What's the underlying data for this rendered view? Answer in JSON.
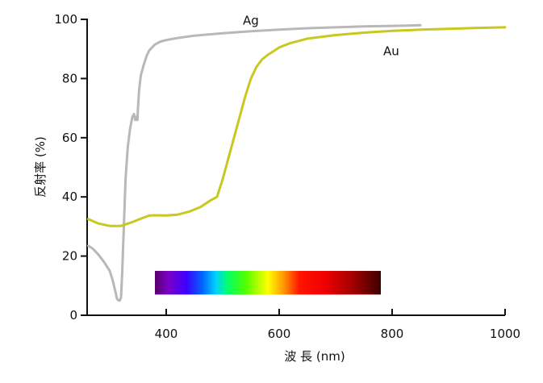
{
  "chart_data": {
    "type": "line",
    "xlabel": "波 長 (nm)",
    "ylabel": "反射率 (%)",
    "xlim": [
      260,
      1000
    ],
    "ylim": [
      0,
      100
    ],
    "x_ticks": [
      400,
      600,
      800,
      1000
    ],
    "y_ticks": [
      0,
      20,
      40,
      60,
      80,
      100
    ],
    "grid": false,
    "spectrum_band": {
      "x_range": [
        380,
        780
      ],
      "y_range": [
        7,
        15
      ]
    },
    "series": [
      {
        "name": "Ag",
        "color": "#b8b8b8",
        "x": [
          262,
          270,
          280,
          290,
          300,
          305,
          310,
          313,
          316,
          318,
          320,
          322,
          325,
          328,
          332,
          336,
          340,
          343,
          345,
          347,
          349,
          350,
          352,
          355,
          360,
          365,
          370,
          380,
          390,
          400,
          420,
          450,
          500,
          550,
          600,
          650,
          700,
          750,
          800,
          850
        ],
        "y": [
          23.5,
          22.5,
          20.5,
          18,
          15,
          12,
          8,
          5.5,
          5,
          5,
          6,
          14,
          30,
          46,
          57,
          63,
          67,
          68,
          66,
          67,
          66,
          70,
          76,
          81,
          84.5,
          87.5,
          89.5,
          91.5,
          92.5,
          93,
          93.7,
          94.5,
          95.3,
          96,
          96.5,
          97,
          97.3,
          97.6,
          97.8,
          98
        ]
      },
      {
        "name": "Au",
        "color": "#c8c81e",
        "x": [
          262,
          280,
          300,
          320,
          340,
          360,
          370,
          380,
          400,
          420,
          440,
          460,
          480,
          490,
          500,
          510,
          520,
          530,
          540,
          550,
          560,
          570,
          580,
          600,
          620,
          650,
          700,
          750,
          800,
          850,
          900,
          950,
          1000
        ],
        "y": [
          32.5,
          31,
          30.2,
          30.2,
          31.5,
          33,
          33.7,
          33.8,
          33.7,
          34,
          35,
          36.5,
          39,
          40,
          46,
          53,
          60,
          67,
          74,
          80,
          84,
          86.5,
          88,
          90.5,
          92,
          93.5,
          94.7,
          95.5,
          96.1,
          96.5,
          96.8,
          97.1,
          97.3
        ]
      }
    ],
    "annotations": [
      {
        "text": "Ag",
        "x": 590,
        "y": 99
      },
      {
        "text": "Au",
        "x": 870,
        "y": 90
      }
    ]
  }
}
